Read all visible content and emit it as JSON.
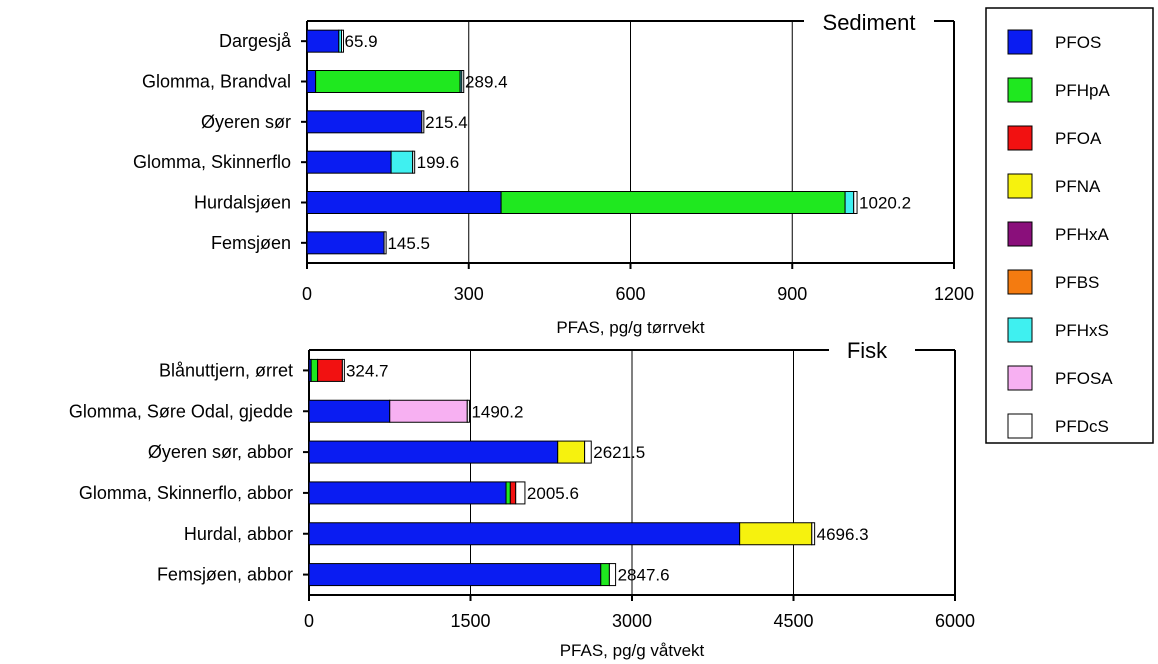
{
  "chart_data": [
    {
      "type": "bar",
      "orientation": "horizontal",
      "stacked": true,
      "title": "Sediment",
      "xlabel": "PFAS, pg/g tørrvekt",
      "xlim": [
        0,
        1200
      ],
      "xticks": [
        "0",
        "300",
        "600",
        "900",
        "1200"
      ],
      "grid": true,
      "categories": [
        "Dargesjå",
        "Glomma, Brandval",
        "Øyeren sør",
        "Glomma, Skinnerflo",
        "Hurdalsjøen",
        "Femsjøen"
      ],
      "totals": [
        "65.9",
        "289.4",
        "215.4",
        "199.6",
        "1020.2",
        "145.5"
      ],
      "series": [
        {
          "name": "PFOS",
          "values": [
            59,
            16,
            213,
            156,
            360,
            143
          ]
        },
        {
          "name": "PFHpA",
          "values": [
            0,
            268,
            0,
            0,
            638,
            0
          ]
        },
        {
          "name": "PFOA",
          "values": [
            0,
            0,
            0,
            0,
            0,
            0
          ]
        },
        {
          "name": "PFNA",
          "values": [
            0,
            0,
            0,
            0,
            0,
            0
          ]
        },
        {
          "name": "PFHxA",
          "values": [
            0,
            0,
            0,
            0,
            0,
            0
          ]
        },
        {
          "name": "PFBS",
          "values": [
            0,
            0,
            0,
            0,
            0,
            0
          ]
        },
        {
          "name": "PFHxS",
          "values": [
            5,
            3,
            0,
            40,
            16,
            0
          ]
        },
        {
          "name": "PFOSA",
          "values": [
            0,
            0,
            0,
            0,
            0,
            0
          ]
        },
        {
          "name": "PFDcS",
          "values": [
            1.9,
            2.4,
            2.4,
            3.6,
            6.2,
            2.5
          ]
        }
      ]
    },
    {
      "type": "bar",
      "orientation": "horizontal",
      "stacked": true,
      "title": "Fisk",
      "xlabel": "PFAS, pg/g våtvekt",
      "xlim": [
        0,
        6000
      ],
      "xticks": [
        "0",
        "1500",
        "3000",
        "4500",
        "6000"
      ],
      "grid": true,
      "categories": [
        "Blånuttjern, ørret",
        "Glomma, Søre Odal, gjedde",
        "Øyeren sør, abbor",
        "Glomma, Skinnerflo, abbor",
        "Hurdal, abbor",
        "Femsjøen, abbor"
      ],
      "totals": [
        "324.7",
        "1490.2",
        "2621.5",
        "2005.6",
        "4696.3",
        "2847.6"
      ],
      "series": [
        {
          "name": "PFOS",
          "values": [
            20,
            750,
            2310,
            1830,
            4000,
            2710
          ]
        },
        {
          "name": "PFHpA",
          "values": [
            60,
            0,
            0,
            40,
            0,
            80
          ]
        },
        {
          "name": "PFOA",
          "values": [
            230,
            0,
            0,
            50,
            0,
            0
          ]
        },
        {
          "name": "PFNA",
          "values": [
            0,
            0,
            250,
            0,
            670,
            0
          ]
        },
        {
          "name": "PFHxA",
          "values": [
            0,
            0,
            0,
            0,
            0,
            0
          ]
        },
        {
          "name": "PFBS",
          "values": [
            0,
            0,
            0,
            0,
            0,
            0
          ]
        },
        {
          "name": "PFHxS",
          "values": [
            0,
            0,
            0,
            0,
            0,
            0
          ]
        },
        {
          "name": "PFOSA",
          "values": [
            0,
            720,
            0,
            0,
            0,
            0
          ]
        },
        {
          "name": "PFDcS",
          "values": [
            14.7,
            20.2,
            61.5,
            85.6,
            26.3,
            57.6
          ]
        }
      ]
    }
  ],
  "legend": {
    "placement": "right",
    "items": [
      {
        "name": "PFOS",
        "color": "#0a1cf2"
      },
      {
        "name": "PFHpA",
        "color": "#1fe81f"
      },
      {
        "name": "PFOA",
        "color": "#f21111"
      },
      {
        "name": "PFNA",
        "color": "#f6f20e"
      },
      {
        "name": "PFHxA",
        "color": "#8a0f7b"
      },
      {
        "name": "PFBS",
        "color": "#f47b10"
      },
      {
        "name": "PFHxS",
        "color": "#3ff0f0"
      },
      {
        "name": "PFOSA",
        "color": "#f7b0f2"
      },
      {
        "name": "PFDcS",
        "color": "#ffffff"
      }
    ]
  }
}
